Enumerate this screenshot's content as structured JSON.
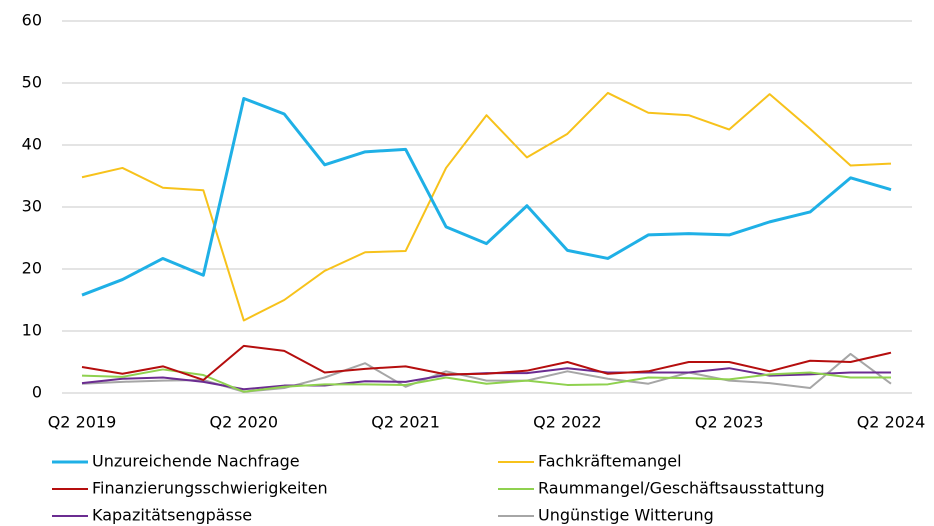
{
  "chart_data": {
    "type": "line",
    "categories": [
      "Q2 2019",
      null,
      null,
      null,
      "Q2 2020",
      null,
      null,
      null,
      "Q2 2021",
      null,
      null,
      null,
      "Q2 2022",
      null,
      null,
      null,
      "Q2 2023",
      null,
      null,
      null,
      "Q2 2024"
    ],
    "series": [
      {
        "name": "Unzureichende Nachfrage",
        "color": "#1fb0e6",
        "values": [
          15.8,
          18.3,
          21.7,
          19.0,
          47.5,
          45.0,
          36.8,
          38.9,
          39.3,
          26.8,
          24.1,
          30.2,
          23.0,
          21.7,
          25.5,
          25.7,
          25.5,
          27.6,
          29.2,
          34.7,
          32.8
        ]
      },
      {
        "name": "Fachkräftemangel",
        "color": "#f7c21b",
        "values": [
          34.8,
          36.3,
          33.1,
          32.7,
          11.7,
          15.0,
          19.7,
          22.7,
          22.9,
          36.3,
          44.8,
          38.0,
          41.8,
          48.4,
          45.2,
          44.8,
          42.5,
          48.2,
          42.6,
          36.7,
          37.0
        ]
      },
      {
        "name": "Finanzierungsschwierigkeiten",
        "color": "#b50e0e",
        "values": [
          4.2,
          3.1,
          4.3,
          2.1,
          7.6,
          6.8,
          3.3,
          3.9,
          4.3,
          3.0,
          3.1,
          3.6,
          5.0,
          3.1,
          3.5,
          5.0,
          5.0,
          3.5,
          5.2,
          5.0,
          6.5
        ]
      },
      {
        "name": "Raummangel/Geschäftsausstattung",
        "color": "#8fd14f",
        "values": [
          2.8,
          2.6,
          3.8,
          2.9,
          0.2,
          1.0,
          1.4,
          1.4,
          1.3,
          2.5,
          1.5,
          2.0,
          1.3,
          1.4,
          2.5,
          2.4,
          2.2,
          3.0,
          3.3,
          2.5,
          2.5
        ]
      },
      {
        "name": "Kapazitätsengpässe",
        "color": "#6b2c91",
        "values": [
          1.6,
          2.3,
          2.5,
          1.8,
          0.6,
          1.2,
          1.2,
          1.9,
          1.8,
          2.9,
          3.2,
          3.2,
          4.0,
          3.3,
          3.3,
          3.3,
          4.0,
          2.8,
          3.0,
          3.3,
          3.3
        ]
      },
      {
        "name": "Ungünstige Witterung",
        "color": "#a6a6a6",
        "values": [
          1.5,
          1.8,
          2.0,
          2.1,
          0.2,
          0.8,
          2.5,
          4.8,
          1.0,
          3.5,
          2.0,
          2.0,
          3.5,
          2.3,
          1.5,
          3.3,
          2.0,
          1.6,
          0.8,
          6.3,
          1.5
        ]
      }
    ],
    "ylim": [
      0,
      60
    ],
    "yticks": [
      0,
      10,
      20,
      30,
      40,
      50,
      60
    ],
    "grid": true
  }
}
